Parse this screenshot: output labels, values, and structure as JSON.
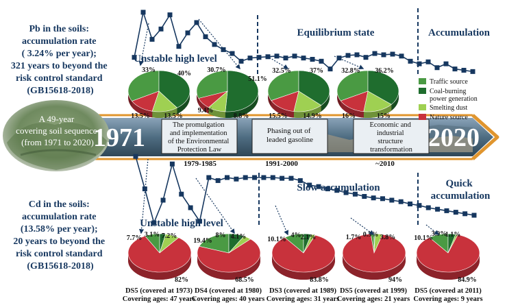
{
  "colors": {
    "traffic": "#4a9a43",
    "coal": "#1f6d2e",
    "smelting": "#9fd052",
    "nature": "#c8323c",
    "navy": "#16375f",
    "arrow": "#e0952e"
  },
  "pb": {
    "left_text": [
      "Pb in the soils:",
      "accumulation rate",
      "( 3.24% per year);",
      "321 years to beyond the",
      "risk control standard",
      "(GB15618-2018)"
    ],
    "phases": [
      "Unstable high level",
      "Equilibrium state",
      "Accumulation"
    ],
    "pies": [
      {
        "values": [
          33,
          40,
          13.5,
          13.5
        ],
        "labels": [
          "33%",
          "40%",
          "13.5%",
          "13.5%"
        ]
      },
      {
        "values": [
          30.7,
          51.1,
          9.4,
          8.8
        ],
        "labels": [
          "30.7%",
          "51.1%",
          "9.4%",
          "8.8%"
        ]
      },
      {
        "values": [
          32.5,
          37,
          15.5,
          14.9
        ],
        "labels": [
          "32.5%",
          "37%",
          "15.5%",
          "14.9%"
        ]
      },
      {
        "values": [
          32.8,
          36.2,
          16,
          15
        ],
        "labels": [
          "32.8%",
          "36.2%",
          "16%",
          "15%"
        ]
      }
    ],
    "legend": [
      "Traffic source",
      "Coal-burning",
      "power generation",
      "Smelting dust",
      "Nature source"
    ],
    "series": [
      0.28,
      0.98,
      0.56,
      0.72,
      0.94,
      0.45,
      0.66,
      0.82,
      0.6,
      0.48,
      0.4,
      0.34,
      0.22,
      0.27,
      0.28,
      0.29,
      0.3,
      0.27,
      0.3,
      0.27,
      0.25,
      0.22,
      0.1,
      0.27,
      0.31,
      0.32,
      0.28,
      0.34,
      0.32,
      0.33,
      0.3,
      0.22,
      0.18,
      0.21,
      0.12,
      0.18,
      0.1,
      0.08,
      0.06
    ]
  },
  "cd": {
    "left_text": [
      "Cd in the soils:",
      "accumulation rate",
      "(13.58% per year);",
      "20 years to beyond the",
      "risk control standard",
      "(GB15618-2018)"
    ],
    "phases": [
      "Unstable high level",
      "Slow accumulation",
      "Quick",
      "accumulation"
    ],
    "pies": [
      {
        "values": [
          7.7,
          3.1,
          7.2,
          82
        ],
        "labels": [
          "7.7%",
          "3.1%",
          "7.2%",
          "82%"
        ]
      },
      {
        "values": [
          19.4,
          8,
          4.1,
          68.5
        ],
        "labels": [
          "19.4%",
          "8%",
          "4.1%",
          "68.5%"
        ]
      },
      {
        "values": [
          10.1,
          4,
          2.1,
          83.8
        ],
        "labels": [
          "10.1%",
          "4%",
          "2.1%",
          "83.8%"
        ]
      },
      {
        "values": [
          1.7,
          0.5,
          3.8,
          94
        ],
        "labels": [
          "1.7%",
          "0.5%",
          "3.8%",
          "94%"
        ]
      },
      {
        "values": [
          10.1,
          3.9,
          1.1,
          84.9
        ],
        "labels": [
          "10.1%",
          "3.9%",
          "1.1%",
          "84.9%"
        ]
      }
    ],
    "samples": [
      {
        "name": "DS5 (covered at 1973)",
        "ages": "Covering ages: 47 years"
      },
      {
        "name": "DS4 (covered at 1980)",
        "ages": "Covering ages: 40 years"
      },
      {
        "name": "DS3 (covered at 1989)",
        "ages": "Covering ages: 31 years"
      },
      {
        "name": "DS5 (covered at 1999)",
        "ages": "Covering ages: 21 years"
      },
      {
        "name": "DS5 (covered at 2011)",
        "ages": "Covering ages: 9 years"
      }
    ],
    "series": [
      0.98,
      0.55,
      0.1,
      0.4,
      0.88,
      0.48,
      0.3,
      0.12,
      0.7,
      0.66,
      0.7,
      0.68,
      0.7,
      0.7,
      0.7,
      0.7,
      0.69,
      0.69,
      0.66,
      0.6,
      0.58,
      0.55,
      0.53,
      0.5,
      0.48,
      0.45,
      0.43,
      0.42,
      0.4,
      0.38,
      0.35,
      0.33,
      0.3,
      0.28,
      0.26,
      0.24,
      0.22,
      0.2
    ]
  },
  "timeline": {
    "start_year": "1971",
    "end_year": "2020",
    "sequence_text": [
      "A 49-year",
      "covering soil sequence",
      "(from 1971 to 2020)"
    ],
    "events": [
      {
        "text": [
          "The promulgation",
          "and implementation",
          "of the Environmental",
          "Protection Law"
        ],
        "period": "1979-1985"
      },
      {
        "text": [
          "Phasing out of",
          "leaded gasoline"
        ],
        "period": "1991-2000"
      },
      {
        "text": [
          "Economic and",
          "industrial",
          "structure",
          "transformation"
        ],
        "period": "~2010"
      }
    ]
  }
}
